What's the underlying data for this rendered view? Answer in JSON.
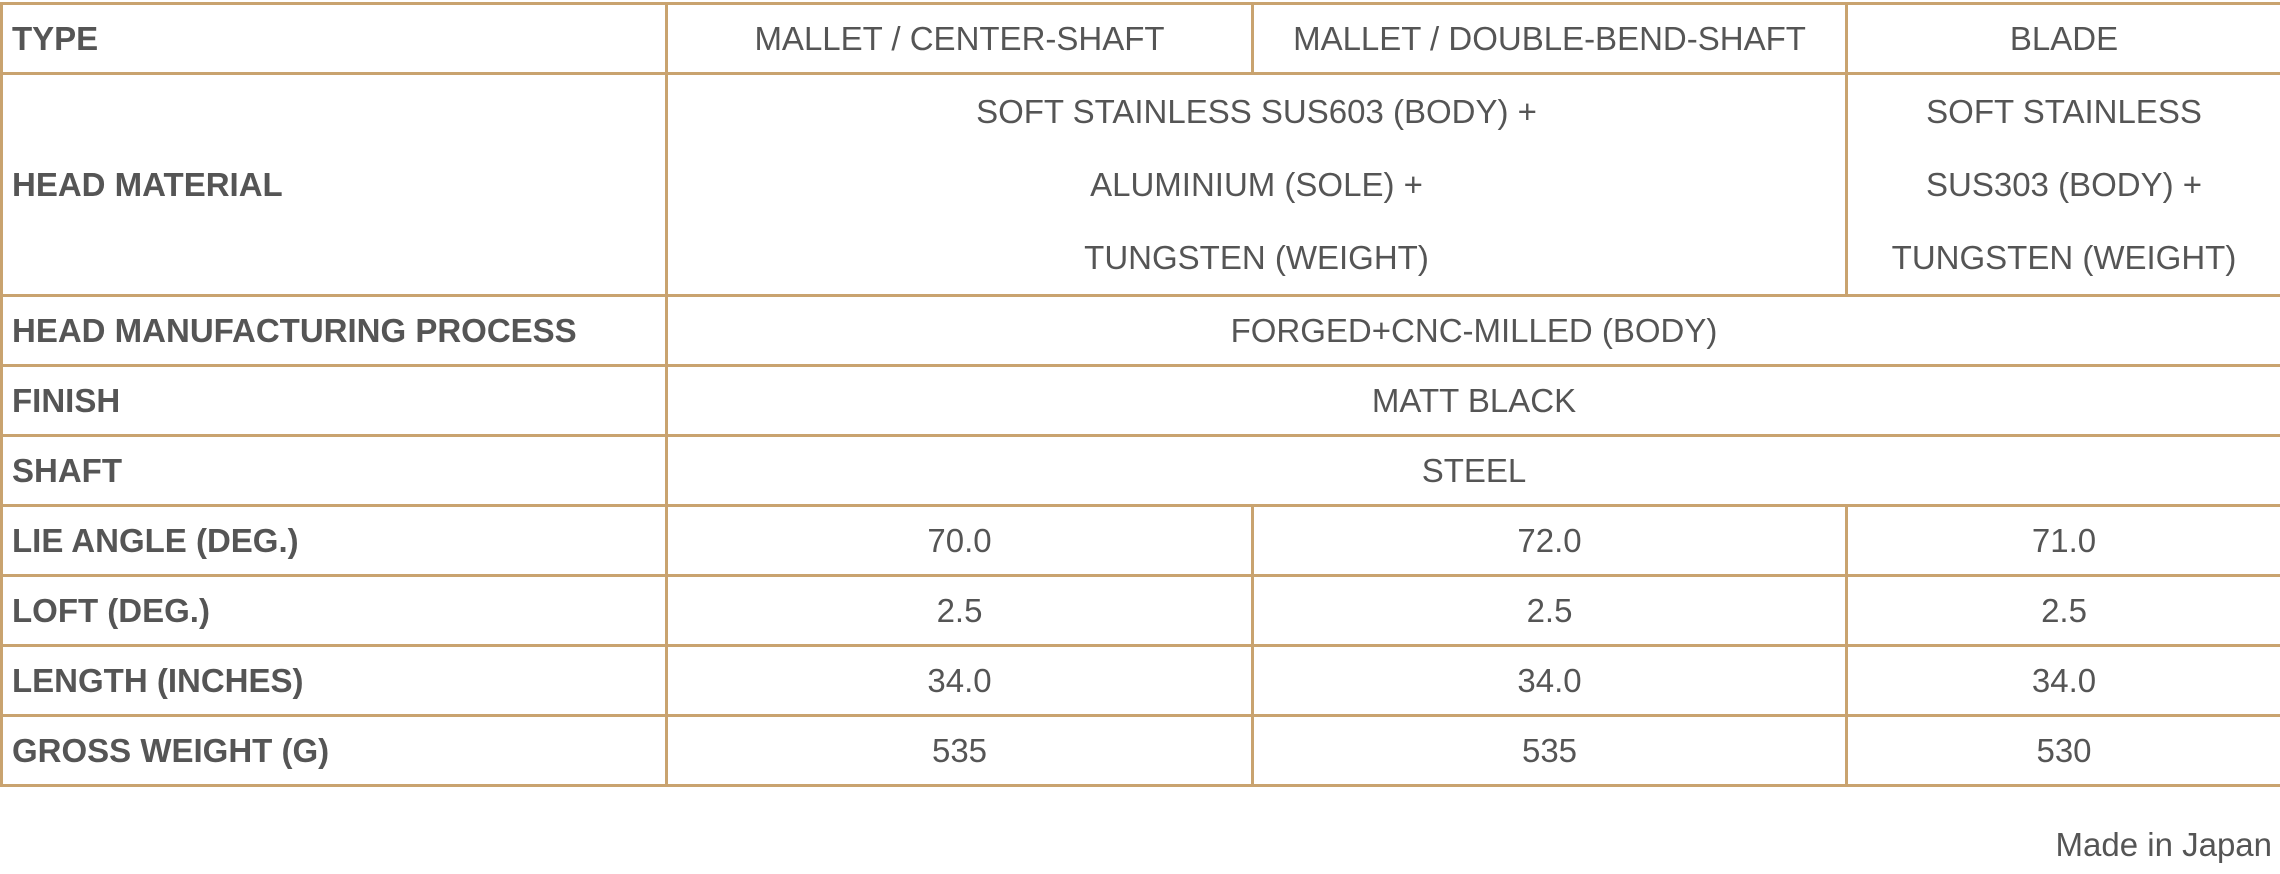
{
  "table": {
    "rows": [
      {
        "label": "TYPE",
        "cells": [
          "MALLET / CENTER-SHAFT",
          "MALLET / DOUBLE-BEND-SHAFT",
          "BLADE"
        ]
      },
      {
        "label": "HEAD MATERIAL",
        "cells": [
          [
            "SOFT STAINLESS SUS603 (BODY) +",
            "ALUMINIUM (SOLE) +",
            "TUNGSTEN (WEIGHT)"
          ],
          [
            "SOFT STAINLESS",
            "SUS303 (BODY) +",
            "TUNGSTEN (WEIGHT)"
          ]
        ]
      },
      {
        "label": "HEAD MANUFACTURING PROCESS",
        "cells": [
          "FORGED+CNC-MILLED (BODY)"
        ]
      },
      {
        "label": "FINISH",
        "cells": [
          "MATT BLACK"
        ]
      },
      {
        "label": "SHAFT",
        "cells": [
          "STEEL"
        ]
      },
      {
        "label": "LIE ANGLE (DEG.)",
        "cells": [
          "70.0",
          "72.0",
          "71.0"
        ]
      },
      {
        "label": "LOFT (DEG.)",
        "cells": [
          "2.5",
          "2.5",
          "2.5"
        ]
      },
      {
        "label": "LENGTH (INCHES)",
        "cells": [
          "34.0",
          "34.0",
          "34.0"
        ]
      },
      {
        "label": "GROSS WEIGHT (G)",
        "cells": [
          "535",
          "535",
          "530"
        ]
      }
    ]
  },
  "footnote": "Made in Japan"
}
